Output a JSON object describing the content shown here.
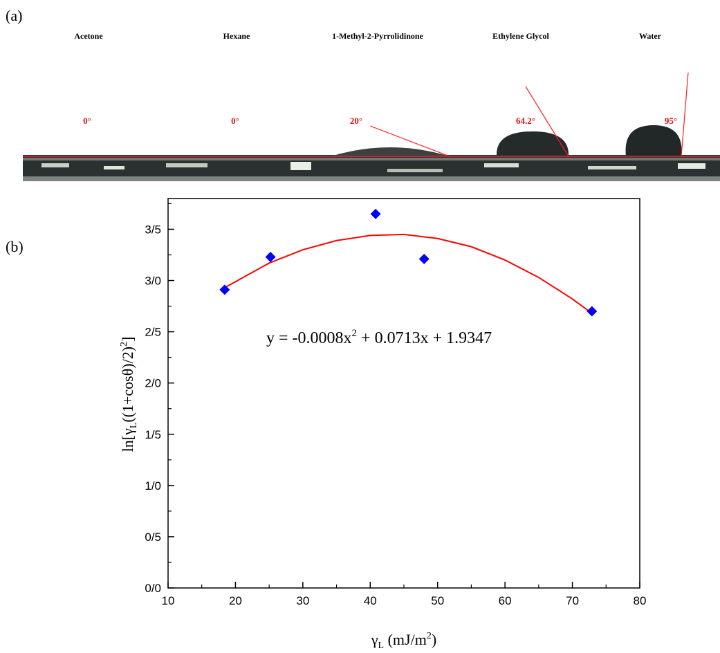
{
  "panel_a": {
    "label": "(a)",
    "liquids": [
      {
        "name": "Acetone",
        "angle": "0°"
      },
      {
        "name": "Hexane",
        "angle": "0°"
      },
      {
        "name": "1-Methyl-2-Pyrrolidinone",
        "angle": "20°"
      },
      {
        "name": "Ethylene Glycol",
        "angle": "64.2°"
      },
      {
        "name": "Water",
        "angle": "95°"
      }
    ]
  },
  "chart_data": {
    "type": "scatter",
    "panel_label": "(b)",
    "x_label": [
      "γ",
      "L",
      " (mJ/m",
      "2",
      ")"
    ],
    "y_label": [
      "ln[γ",
      "L",
      "((1+cosθ)/2)",
      "2",
      "]"
    ],
    "equation": [
      "y = -0.0008x",
      "2",
      " + 0.0713x + 1.9347"
    ],
    "xlim": [
      10,
      80
    ],
    "ylim": [
      0,
      3.8
    ],
    "xticks": [
      10,
      20,
      30,
      40,
      50,
      60,
      70,
      80
    ],
    "yticks": [
      {
        "value": 0,
        "label": "0/0"
      },
      {
        "value": 0.5,
        "label": "0/5"
      },
      {
        "value": 1,
        "label": "1/0"
      },
      {
        "value": 1.5,
        "label": "1/5"
      },
      {
        "value": 2,
        "label": "2/0"
      },
      {
        "value": 2.5,
        "label": "2/5"
      },
      {
        "value": 3,
        "label": "3/0"
      },
      {
        "value": 3.5,
        "label": "3/5"
      }
    ],
    "xminorticks": [
      15,
      25,
      35,
      45,
      55,
      65,
      75
    ],
    "yminorticks": [
      0.25,
      0.75,
      1.25,
      1.75,
      2.25,
      2.75,
      3.25,
      3.75
    ],
    "points": {
      "color": "#0000ff",
      "x": [
        18.4,
        25.2,
        40.8,
        48,
        72.9
      ],
      "y": [
        2.91,
        3.23,
        3.65,
        3.21,
        2.7
      ]
    },
    "fit": {
      "color": "#ff0000",
      "x": [
        18.4,
        25,
        30,
        35,
        40,
        45,
        50,
        55,
        60,
        65,
        70,
        72.9
      ],
      "y": [
        2.93,
        3.17,
        3.3,
        3.39,
        3.44,
        3.45,
        3.41,
        3.33,
        3.2,
        3.03,
        2.82,
        2.68
      ]
    }
  }
}
